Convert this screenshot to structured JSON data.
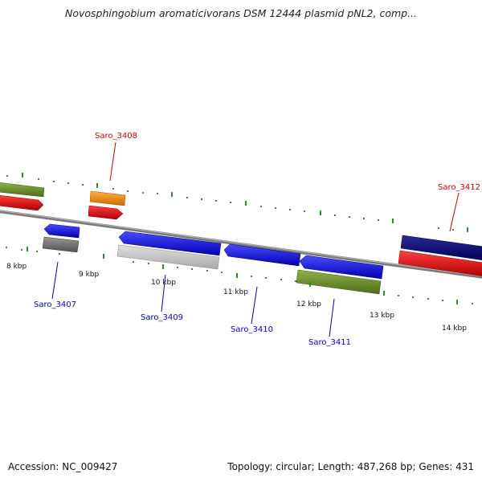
{
  "title": "Novosphingobium aromaticivorans DSM 12444 plasmid pNL2, comp...",
  "footer": {
    "accession": "Accession: NC_009427",
    "summary": "Topology: circular; Length: 487,268 bp; Genes: 431"
  },
  "kbp_labels": [
    "8 kbp",
    "9 kbp",
    "10 kbp",
    "11 kbp",
    "12 kbp",
    "13 kbp",
    "14 kbp"
  ],
  "gene_labels": {
    "saro_3407": "Saro_3407",
    "saro_3408": "Saro_3408",
    "saro_3409": "Saro_3409",
    "saro_3410": "Saro_3410",
    "saro_3411": "Saro_3411",
    "saro_3412": "Saro_3412"
  },
  "colors": {
    "forward_label": "#cc0000",
    "reverse_label": "#0000cc",
    "blue_gene": "#0a0aee",
    "red_gene": "#ee0a0a",
    "olive_gene": "#6b8e23",
    "orange_gene": "#ff8c00",
    "navy_gene": "#000080",
    "gray_gene": "#6e6e6e",
    "lightgray_gene": "#c4c4c4",
    "tick_color": "#2e8b2e",
    "backbone": "#808080"
  }
}
